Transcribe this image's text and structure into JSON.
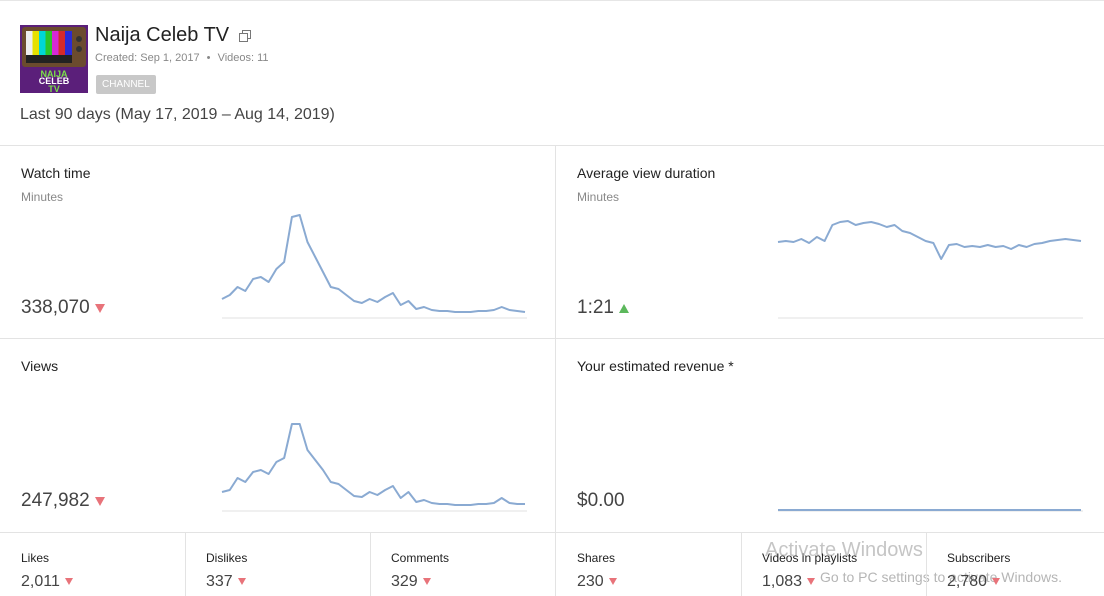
{
  "header": {
    "title": "Naija Celeb TV",
    "created": "Created: Sep 1, 2017",
    "separator": "•",
    "videos": "Videos: 11",
    "badge": "CHANNEL",
    "thumbnail_text": [
      "NAIJA",
      "CELEB",
      "TV"
    ],
    "period": "Last 90 days (May 17, 2019 – Aug 14, 2019)"
  },
  "cards": [
    {
      "title": "Watch time",
      "unit": "Minutes",
      "value": "338,070",
      "trend": "down",
      "spark": [
        18,
        22,
        30,
        26,
        38,
        40,
        35,
        48,
        55,
        100,
        102,
        75,
        60,
        45,
        30,
        28,
        22,
        16,
        14,
        18,
        15,
        20,
        24,
        12,
        16,
        8,
        10,
        7,
        6,
        6,
        5,
        5,
        5,
        6,
        6,
        7,
        10,
        7,
        6,
        5
      ]
    },
    {
      "title": "Average view duration",
      "unit": "Minutes",
      "value": "1:21",
      "trend": "up",
      "spark": [
        75,
        76,
        75,
        78,
        74,
        80,
        76,
        92,
        95,
        96,
        92,
        94,
        95,
        93,
        90,
        92,
        86,
        84,
        80,
        76,
        74,
        58,
        72,
        73,
        70,
        71,
        70,
        72,
        70,
        71,
        68,
        72,
        70,
        73,
        74,
        76,
        77,
        78,
        77,
        76
      ]
    },
    {
      "title": "Views",
      "value": "247,982",
      "trend": "down",
      "spark": [
        18,
        20,
        32,
        28,
        38,
        40,
        36,
        48,
        52,
        86,
        86,
        60,
        50,
        40,
        28,
        26,
        20,
        14,
        13,
        18,
        15,
        20,
        24,
        12,
        18,
        8,
        10,
        7,
        6,
        6,
        5,
        5,
        5,
        6,
        6,
        7,
        12,
        7,
        6,
        6
      ]
    },
    {
      "title": "Your estimated revenue *",
      "value": "$0.00",
      "spark": [
        0,
        0,
        0,
        0,
        0,
        0,
        0,
        0,
        0,
        0
      ]
    }
  ],
  "stats": [
    {
      "label": "Likes",
      "value": "2,011",
      "trend": "down"
    },
    {
      "label": "Dislikes",
      "value": "337",
      "trend": "down"
    },
    {
      "label": "Comments",
      "value": "329",
      "trend": "down"
    },
    {
      "label": "Shares",
      "value": "230",
      "trend": "down"
    },
    {
      "label": "Videos in playlists",
      "value": "1,083",
      "trend": "down"
    },
    {
      "label": "Subscribers",
      "value": "2,780",
      "trend": "down"
    }
  ],
  "watermark": {
    "title": "Activate Windows",
    "subtitle": "Go to PC settings to activate Windows."
  }
}
